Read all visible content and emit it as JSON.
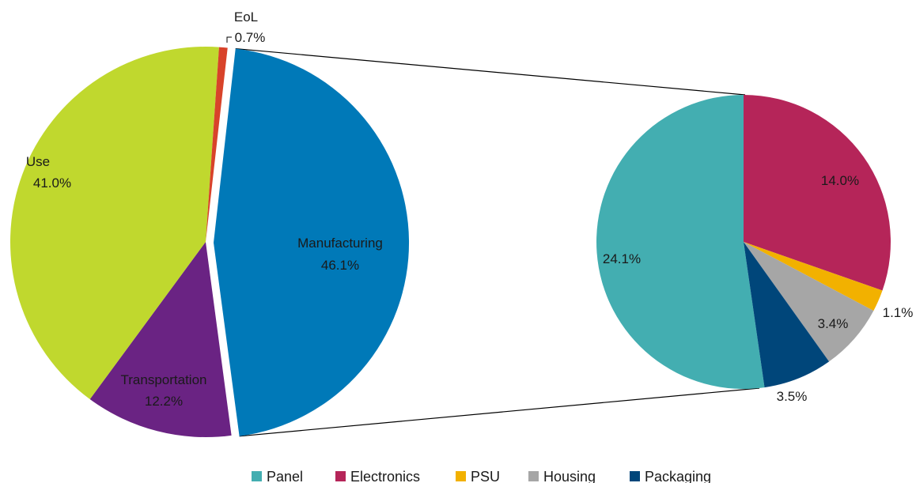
{
  "chart_data": [
    {
      "type": "pie",
      "slices": [
        {
          "label": "Manufacturing",
          "value": 46.1,
          "value_label": "46.1%",
          "color": "#0079B8"
        },
        {
          "label": "Transportation",
          "value": 12.2,
          "value_label": "12.2%",
          "color": "#6A2383"
        },
        {
          "label": "Use",
          "value": 41.0,
          "value_label": "41.0%",
          "color": "#C0D82E"
        },
        {
          "label": "EoL",
          "value": 0.7,
          "value_label": "0.7%",
          "color": "#D8432A"
        }
      ],
      "exploded_slice": "Manufacturing"
    },
    {
      "type": "pie",
      "slices": [
        {
          "label": "Panel",
          "value": 24.1,
          "value_label": "24.1%",
          "color": "#43AEB1"
        },
        {
          "label": "Electronics",
          "value": 14.0,
          "value_label": "14.0%",
          "color": "#B52559"
        },
        {
          "label": "PSU",
          "value": 1.1,
          "value_label": "1.1%",
          "color": "#F2B100"
        },
        {
          "label": "Housing",
          "value": 3.4,
          "value_label": "3.4%",
          "color": "#A6A6A6"
        },
        {
          "label": "Packaging",
          "value": 3.5,
          "value_label": "3.5%",
          "color": "#00467A"
        }
      ],
      "legend": {
        "placement": "bottom",
        "entries": [
          "Panel",
          "Electronics",
          "PSU",
          "Housing",
          "Packaging"
        ]
      }
    }
  ]
}
